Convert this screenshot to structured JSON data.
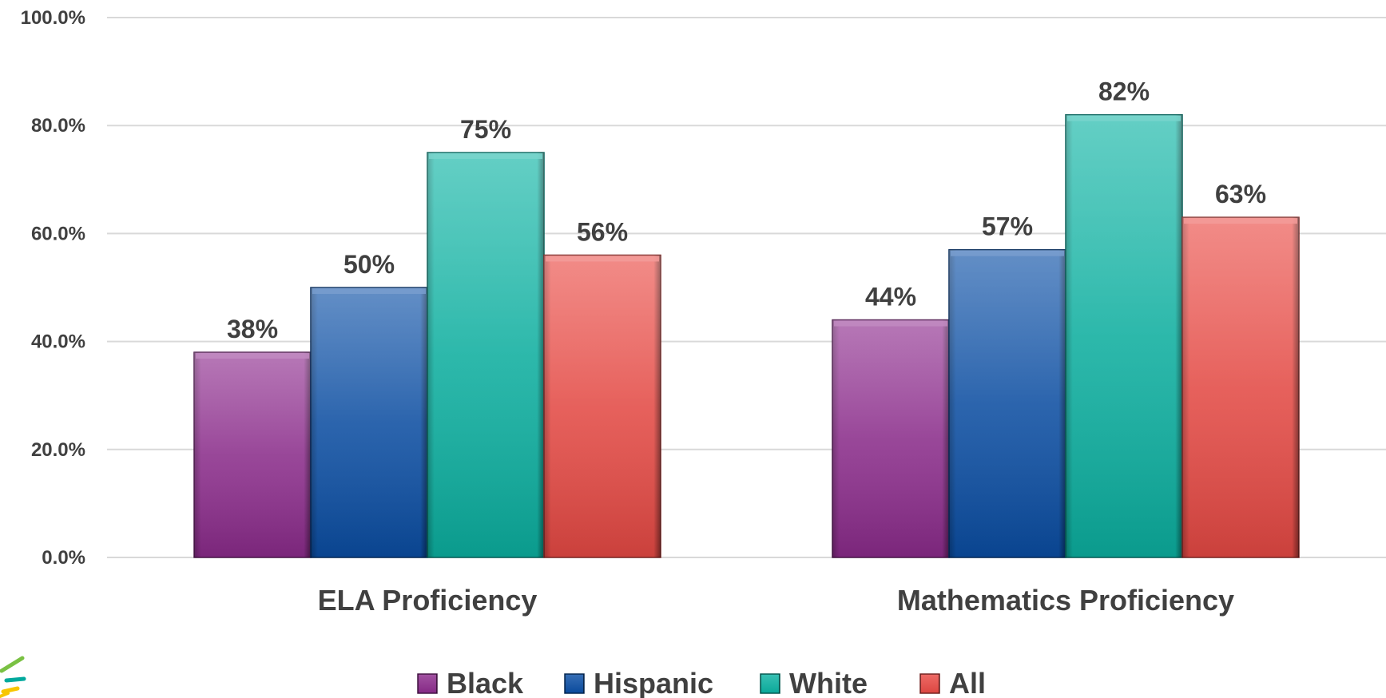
{
  "chart_data": {
    "type": "bar",
    "categories": [
      "ELA Proficiency",
      "Mathematics Proficiency"
    ],
    "series": [
      {
        "name": "Black",
        "values": [
          0.38,
          0.44
        ],
        "labels": [
          "38%",
          "44%"
        ],
        "color": "#8E2C8E"
      },
      {
        "name": "Hispanic",
        "values": [
          0.5,
          0.57
        ],
        "labels": [
          "50%",
          "57%"
        ],
        "color": "#0B4FA6"
      },
      {
        "name": "White",
        "values": [
          0.75,
          0.82
        ],
        "labels": [
          "75%",
          "82%"
        ],
        "color": "#0CB3A3"
      },
      {
        "name": "All",
        "values": [
          0.56,
          0.63
        ],
        "labels": [
          "56%",
          "63%"
        ],
        "color": "#EA4A45"
      }
    ],
    "yticks": [
      0,
      0.2,
      0.4,
      0.6,
      0.8,
      1.0
    ],
    "ytick_labels": [
      "0.0%",
      "20.0%",
      "40.0%",
      "60.0%",
      "80.0%",
      "100.0%"
    ],
    "ylim": [
      0,
      1.0
    ],
    "title": "",
    "xlabel": "",
    "ylabel": "",
    "grid": true,
    "legend_position": "bottom"
  }
}
